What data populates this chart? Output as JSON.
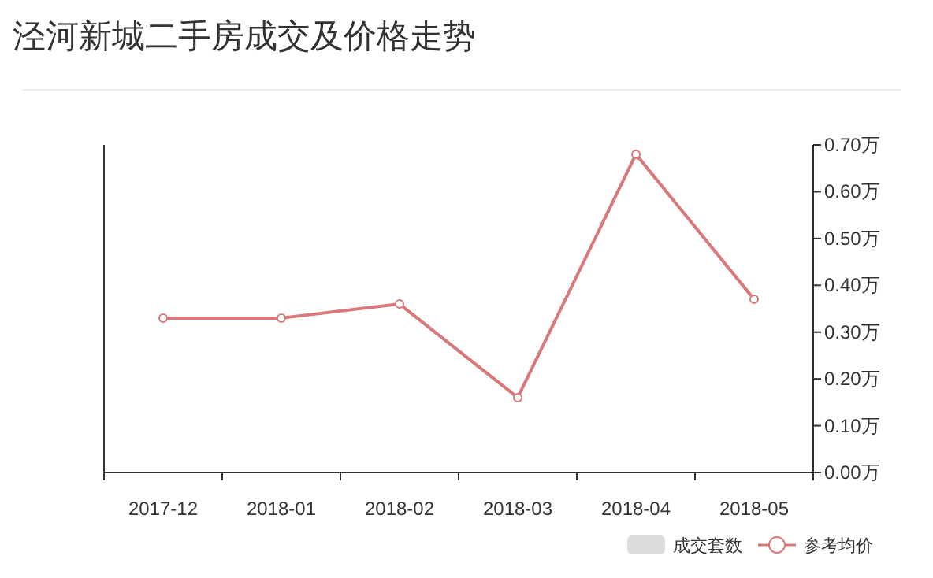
{
  "chart_data": {
    "type": "line",
    "title": "泾河新城二手房成交及价格走势",
    "categories": [
      "2017-12",
      "2018-01",
      "2018-02",
      "2018-03",
      "2018-04",
      "2018-05"
    ],
    "series": [
      {
        "name": "成交套数",
        "type": "bar",
        "color": "#dcdcdc",
        "values": [
          null,
          null,
          null,
          null,
          null,
          null
        ]
      },
      {
        "name": "参考均价",
        "axis": "y2",
        "color": "#d9787a",
        "marker": "circle",
        "values": [
          0.33,
          0.33,
          0.36,
          0.16,
          0.68,
          0.37
        ]
      }
    ],
    "y2lim": [
      0,
      0.7
    ],
    "y2ticks": [
      {
        "value": 0,
        "label": "0.00万"
      },
      {
        "value": 0.1,
        "label": "0.10万"
      },
      {
        "value": 0.2,
        "label": "0.20万"
      },
      {
        "value": 0.3,
        "label": "0.30万"
      },
      {
        "value": 0.4,
        "label": "0.40万"
      },
      {
        "value": 0.5,
        "label": "0.50万"
      },
      {
        "value": 0.6,
        "label": "0.60万"
      },
      {
        "value": 0.7,
        "label": "0.70万"
      }
    ],
    "grid": false,
    "legend": "bottom right"
  }
}
